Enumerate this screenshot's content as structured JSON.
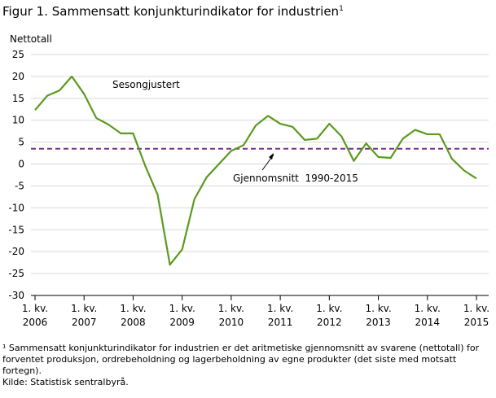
{
  "chart_data": {
    "type": "line",
    "title": "Figur 1. Sammensatt konjunkturindikator for industrien",
    "title_note": "1",
    "y_label": "Nettotall",
    "categories": [
      "1. kv. 2006",
      null,
      null,
      null,
      "1. kv. 2007",
      null,
      null,
      null,
      "1. kv. 2008",
      null,
      null,
      null,
      "1. kv. 2009",
      null,
      null,
      null,
      "1. kv. 2010",
      null,
      null,
      null,
      "1. kv. 2011",
      null,
      null,
      null,
      "1. kv. 2012",
      null,
      null,
      null,
      "1. kv. 2013",
      null,
      null,
      null,
      "1. kv. 2014",
      null,
      null,
      null,
      "1. kv. 2015"
    ],
    "series": [
      {
        "name": "Sesongjustert",
        "color": "#5a9a1e",
        "values": [
          12.3,
          15.6,
          16.8,
          20,
          16,
          10.5,
          9,
          7,
          7,
          -0.5,
          -7,
          -23,
          -19.5,
          -8,
          -3,
          0,
          3,
          4.3,
          8.8,
          11,
          9.2,
          8.5,
          5.5,
          5.8,
          9.2,
          6.3,
          0.7,
          4.7,
          1.6,
          1.4,
          5.8,
          7.8,
          6.8,
          6.8,
          1.2,
          -1.5,
          -3.3
        ]
      }
    ],
    "reference_line": {
      "value": 3.5,
      "color": "#7b2d8e",
      "label": "Gjennomsnitt  1990-2015"
    },
    "ylim": [
      -30,
      25
    ],
    "yticks": [
      -30,
      -25,
      -20,
      -15,
      -10,
      -5,
      0,
      5,
      10,
      15,
      20,
      25
    ],
    "grid": true,
    "footnotes": [
      "¹ Sammensatt konjunkturindikator  for industrien  er det aritmetiske gjennomsnitt av svarene (nettotall) for forventet produksjon, ordrebeholdning og lagerbeholdning av egne produkter  (det siste med motsatt fortegn).",
      "Kilde: Statistisk sentralbyrå."
    ]
  }
}
